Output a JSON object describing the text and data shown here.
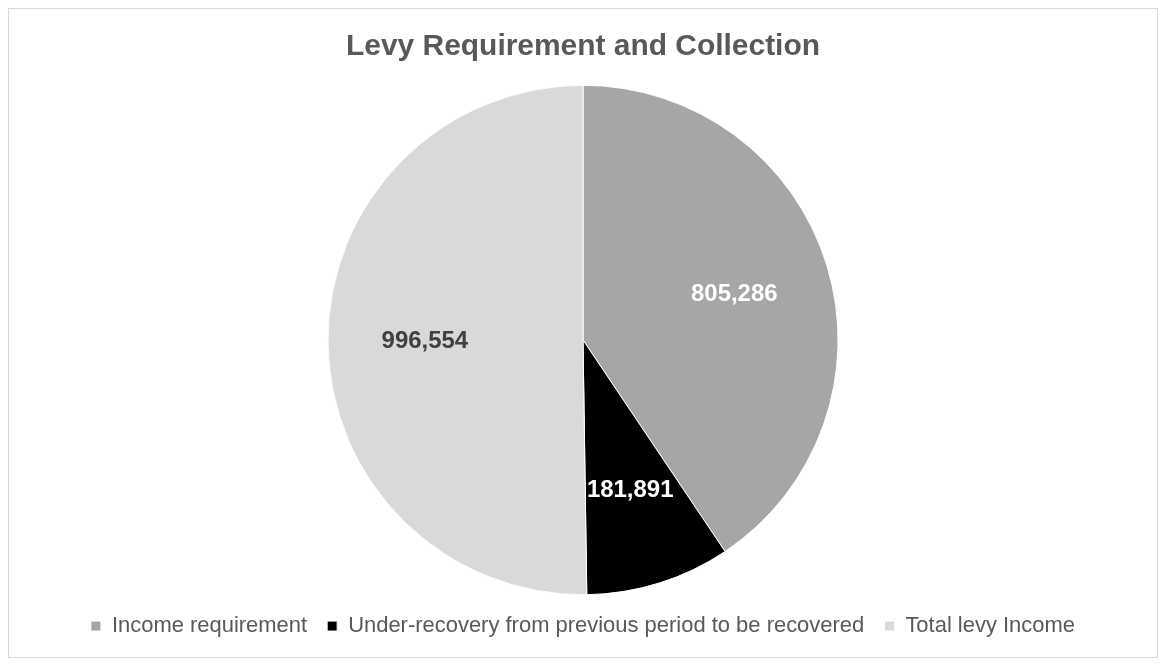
{
  "chart_data": {
    "type": "pie",
    "title": "Levy Requirement and Collection",
    "categories": [
      "Income requirement",
      "Under-recovery from previous period to be recovered",
      "Total levy Income"
    ],
    "values": [
      805286,
      181891,
      996554
    ],
    "colors": [
      "#a6a6a6",
      "#000000",
      "#d9d9d9"
    ],
    "value_labels": [
      "805,286",
      "181,891",
      "996,554"
    ],
    "legend": "bottom"
  }
}
